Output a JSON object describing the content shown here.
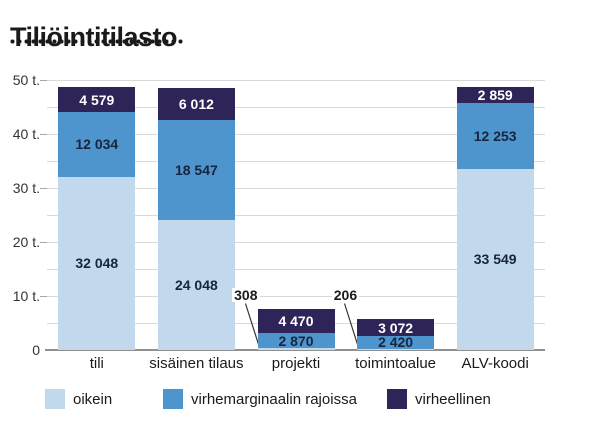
{
  "chart_data": {
    "type": "bar",
    "stacked": true,
    "title": "Tiliöintitilasto",
    "categories": [
      "tili",
      "sisäinen tilaus",
      "projekti",
      "toimintoalue",
      "ALV-koodi"
    ],
    "series": [
      {
        "name": "oikein",
        "color": "#c2d9ed",
        "label_color": "#17253f",
        "values": [
          32048,
          24048,
          308,
          206,
          33549
        ],
        "labels": [
          "32 048",
          "24 048",
          "308",
          "206",
          "33 549"
        ]
      },
      {
        "name": "virhemarginaalin rajoissa",
        "color": "#4d95cc",
        "label_color": "#17253f",
        "values": [
          12034,
          18547,
          2870,
          2420,
          12253
        ],
        "labels": [
          "12 034",
          "18 547",
          "2 870",
          "2 420",
          "12 253"
        ]
      },
      {
        "name": "virheellinen",
        "color": "#2e2458",
        "label_color": "#ffffff",
        "values": [
          4579,
          6012,
          4470,
          3072,
          2859
        ],
        "labels": [
          "4 579",
          "6 012",
          "4 470",
          "3 072",
          "2 859"
        ]
      }
    ],
    "y_axis": {
      "max": 50000,
      "grid_step": 5000,
      "ticks": [
        {
          "value": 0,
          "label": "0"
        },
        {
          "value": 10000,
          "label": "10 t."
        },
        {
          "value": 20000,
          "label": "20 t."
        },
        {
          "value": 30000,
          "label": "30 t."
        },
        {
          "value": 40000,
          "label": "40 t."
        },
        {
          "value": 50000,
          "label": "50 t."
        }
      ]
    },
    "grid": true,
    "legend_position": "bottom",
    "colors": {
      "grid": "#d9d9d9",
      "tick": "#a6a6a6",
      "axis_line": "#8f8f8f",
      "leader_line": "#333333",
      "title_text": "#1a1a1a"
    }
  }
}
